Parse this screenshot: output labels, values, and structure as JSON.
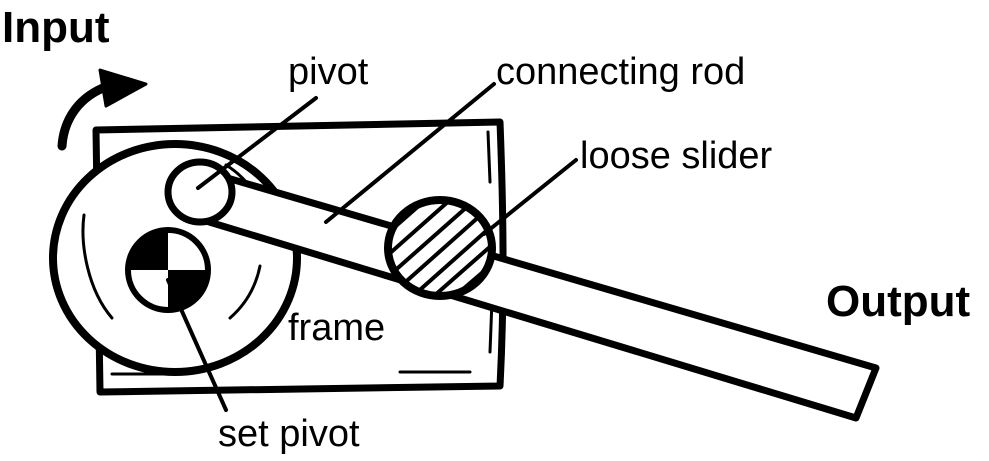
{
  "labels": {
    "input": "Input",
    "output": "Output",
    "pivot": "pivot",
    "connecting_rod": "connecting rod",
    "loose_slider": "loose slider",
    "frame": "frame",
    "set_pivot": "set pivot"
  },
  "colors": {
    "ink": "#000000",
    "paper": "#ffffff"
  }
}
